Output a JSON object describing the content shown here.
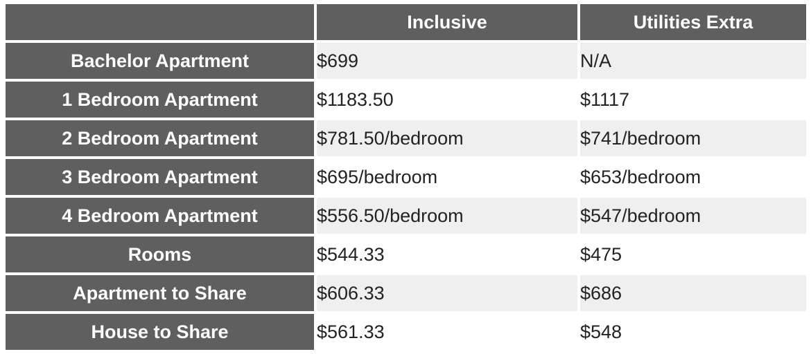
{
  "header": {
    "corner": "",
    "inclusive": "Inclusive",
    "utilities_extra": "Utilities Extra"
  },
  "rows": [
    {
      "type": "Bachelor Apartment",
      "inclusive": "$699",
      "utilities_extra": "N/A"
    },
    {
      "type": "1 Bedroom Apartment",
      "inclusive": "$1183.50",
      "utilities_extra": "$1117"
    },
    {
      "type": "2 Bedroom Apartment",
      "inclusive": "$781.50/bedroom",
      "utilities_extra": "$741/bedroom"
    },
    {
      "type": "3 Bedroom Apartment",
      "inclusive": "$695/bedroom",
      "utilities_extra": "$653/bedroom"
    },
    {
      "type": "4 Bedroom Apartment",
      "inclusive": "$556.50/bedroom",
      "utilities_extra": "$547/bedroom"
    },
    {
      "type": "Rooms",
      "inclusive": "$544.33",
      "utilities_extra": "$475"
    },
    {
      "type": "Apartment to Share",
      "inclusive": "$606.33",
      "utilities_extra": "$686"
    },
    {
      "type": "House to Share",
      "inclusive": "$561.33",
      "utilities_extra": "$548"
    }
  ],
  "colors": {
    "header_bg": "#5f5f5f",
    "header_text": "#ffffff",
    "stripe_bg": "#efefef",
    "cell_bg": "#ffffff",
    "cell_text": "#222222"
  }
}
